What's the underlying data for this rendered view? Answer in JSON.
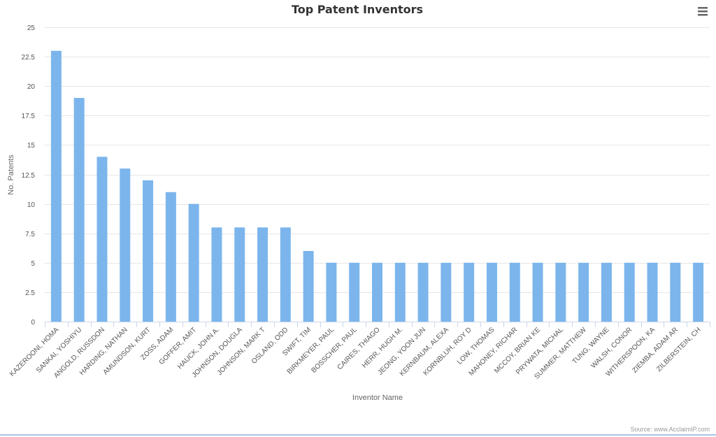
{
  "chart_data": {
    "type": "bar",
    "title": "Top Patent Inventors",
    "xlabel": "Inventor Name",
    "ylabel": "No. Patents",
    "ylim": [
      0,
      25
    ],
    "yticks": [
      "0",
      "2.5",
      "5",
      "7.5",
      "10",
      "12.5",
      "15",
      "17.5",
      "20",
      "22.5",
      "25"
    ],
    "grid": true,
    "legend": "none",
    "bar_color": "#7cb5ec",
    "categories": [
      "KAZEROONI, HOMA",
      "SANKAI, YOSHIYU",
      "ANGOLD, RUSSDON",
      "HARDING, NATHAN",
      "AMUNDSON, KURT",
      "ZOSS, ADAM",
      "GOFFER, AMIT",
      "HAUCK, JOHN A.",
      "JOHNSON, DOUGLA",
      "JOHNSON, MARK T",
      "OSLAND, ODD",
      "SWIFT, TIM",
      "BIRKMEYER, PAUL",
      "BOSSCHER, PAUL",
      "CAIRES, THIAGO",
      "HERR, HUGH M.",
      "JEONG, YOON JUN",
      "KERNBAUM, ALEXA",
      "KORNBLUH, ROY D",
      "LOW, THOMAS",
      "MAHONEY, RICHAR",
      "MCCOY, BRIAN KE",
      "PRYWATA, MICHAL",
      "SUMMER, MATTHEW",
      "TUNG, WAYNE",
      "WALSH, CONOR",
      "WITHERSPOON, KA",
      "ZIEMBA, ADAM AR",
      "ZILBERSTEIN, CH"
    ],
    "values": [
      23,
      19,
      14,
      13,
      12,
      11,
      10,
      8,
      8,
      8,
      8,
      6,
      5,
      5,
      5,
      5,
      5,
      5,
      5,
      5,
      5,
      5,
      5,
      5,
      5,
      5,
      5,
      5,
      5
    ]
  },
  "credit": "Source: www.AcclaimIP.com",
  "menu_icon": "hamburger-menu-icon",
  "colors": {
    "grid": "#e6e6e6",
    "axis": "#ccd6eb",
    "bottom_rule": "#a9c3e6"
  }
}
